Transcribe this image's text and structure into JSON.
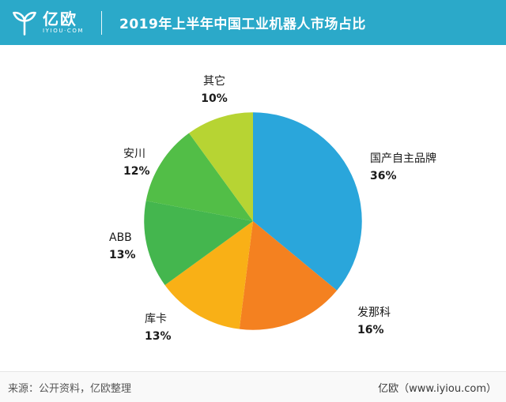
{
  "header": {
    "logo_text": "亿欧",
    "logo_subtext": "IYIOU·COM",
    "title": "2019年上半年中国工业机器人市场占比"
  },
  "footer": {
    "source": "来源：公开资料，亿欧整理",
    "brand": "亿欧（www.iyiou.com）"
  },
  "colors": {
    "header_bg": "#2BA9C9",
    "page_bg": "#FFFFFF",
    "footer_bg": "#F9F9F9"
  },
  "chart_data": {
    "type": "pie",
    "title": "2019年上半年中国工业机器人市场占比",
    "categories": [
      "国产自主品牌",
      "发那科",
      "库卡",
      "ABB",
      "安川",
      "其它"
    ],
    "values": [
      36,
      16,
      13,
      13,
      12,
      10
    ],
    "value_labels": [
      "36%",
      "16%",
      "13%",
      "13%",
      "12%",
      "10%"
    ],
    "unit": "%",
    "colors": [
      "#2AA6DB",
      "#F48120",
      "#F9B016",
      "#44B64E",
      "#52BE47",
      "#B7D433"
    ],
    "start_angle": "12-o-clock",
    "direction": "clockwise",
    "labels_position": "outside"
  }
}
